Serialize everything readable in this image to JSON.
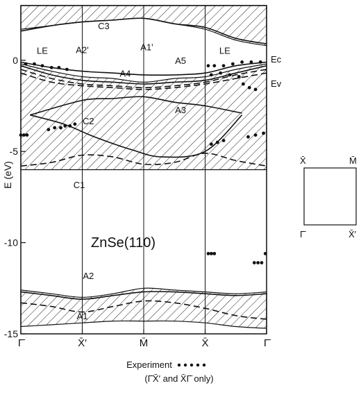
{
  "chart_data": {
    "type": "line",
    "title": "",
    "sample_label": "ZnSe(110)",
    "ylabel": "E (eV)",
    "ylim": [
      -15,
      3
    ],
    "y_ticks": [
      {
        "value": 0,
        "label": "0"
      },
      {
        "value": -5,
        "label": "-5"
      },
      {
        "value": -10,
        "label": "-10"
      },
      {
        "value": -15,
        "label": "-15"
      }
    ],
    "x_points": [
      {
        "pos": 0,
        "label": "Γ̄"
      },
      {
        "pos": 1,
        "label": "X̄′"
      },
      {
        "pos": 2,
        "label": "M̄"
      },
      {
        "pos": 3,
        "label": "X̄"
      },
      {
        "pos": 4,
        "label": "Γ̄"
      }
    ],
    "edge_labels": [
      {
        "text": "Ec",
        "y": 1.4
      },
      {
        "text": "Ev",
        "y": -0.1
      }
    ],
    "series": [
      {
        "name": "C3",
        "style": "solid",
        "x": [
          0,
          0.5,
          1,
          1.5,
          2,
          2.5,
          3,
          3.5,
          4
        ],
        "y": [
          1.6,
          1.9,
          2.1,
          2.2,
          2.3,
          2.0,
          1.8,
          1.2,
          0.9
        ]
      },
      {
        "name": "A5",
        "style": "solid",
        "x": [
          0,
          0.5,
          1,
          1.5,
          2,
          2.5,
          3,
          3.5,
          4
        ],
        "y": [
          -0.1,
          -0.4,
          -0.6,
          -0.7,
          -0.8,
          -0.8,
          -0.7,
          -0.3,
          -0.1
        ]
      },
      {
        "name": "A4",
        "style": "solid",
        "x": [
          0,
          0.5,
          1,
          1.5,
          2,
          2.5,
          3,
          3.5,
          4
        ],
        "y": [
          -0.3,
          -0.8,
          -1.1,
          -1.2,
          -1.3,
          -1.2,
          -1.1,
          -0.7,
          -0.3
        ]
      },
      {
        "name": "A2'",
        "style": "dashed",
        "x": [
          0,
          0.5,
          1,
          1.5,
          2,
          2.5,
          3,
          3.5,
          4
        ],
        "y": [
          -0.5,
          -1.0,
          -1.3,
          -1.4,
          -1.5,
          -1.4,
          -1.2,
          -0.8,
          -0.5
        ]
      },
      {
        "name": "A1'",
        "style": "dashed",
        "x": [
          0,
          0.5,
          1,
          1.5,
          2,
          2.5,
          3,
          3.5,
          4
        ],
        "y": [
          -0.7,
          -1.2,
          -1.4,
          -1.5,
          -1.6,
          -1.5,
          -1.3,
          -1.0,
          -0.7
        ]
      },
      {
        "name": "A3",
        "style": "solid",
        "x": [
          0.15,
          1,
          1.5,
          2,
          2.5,
          3,
          3.6
        ],
        "y": [
          -3.0,
          -2.2,
          -2.1,
          -2.0,
          -2.3,
          -2.5,
          -2.9
        ]
      },
      {
        "name": "C2",
        "style": "solid",
        "x": [
          0.15,
          0.7,
          1.2,
          1.8,
          2.3,
          3,
          3.6
        ],
        "y": [
          -3.0,
          -3.5,
          -4.2,
          -4.9,
          -5.3,
          -5.0,
          -3.0
        ]
      },
      {
        "name": "C1",
        "style": "dashed",
        "x": [
          0,
          0.5,
          1,
          1.5,
          2,
          2.5,
          3,
          3.5,
          4
        ],
        "y": [
          -5.8,
          -5.6,
          -5.2,
          -5.3,
          -5.7,
          -5.6,
          -5.1,
          -5.5,
          -5.8
        ]
      },
      {
        "name": "A2",
        "style": "solid",
        "x": [
          0,
          0.5,
          1,
          1.5,
          2,
          2.5,
          3,
          3.5,
          4
        ],
        "y": [
          -12.7,
          -12.9,
          -13.1,
          -12.9,
          -12.7,
          -12.7,
          -12.8,
          -12.9,
          -12.8
        ]
      },
      {
        "name": "A1",
        "style": "dashed",
        "x": [
          0,
          0.5,
          1,
          1.5,
          2,
          2.5,
          3,
          3.5,
          4
        ],
        "y": [
          -13.3,
          -13.5,
          -13.8,
          -13.5,
          -13.2,
          -13.3,
          -13.6,
          -14.0,
          -14.2
        ]
      }
    ],
    "bands": [
      {
        "upper": [
          -0.2,
          -0.6,
          -0.9,
          -1.0,
          -1.2,
          -1.0,
          -0.9,
          -0.5,
          -0.2
        ],
        "lower": [
          -6.0,
          -6.0,
          -6.0,
          -6.0,
          -6.0,
          -6.0,
          -6.0,
          -6.0,
          -6.0
        ],
        "x": [
          0,
          0.5,
          1,
          1.5,
          2,
          2.5,
          3,
          3.5,
          4
        ]
      },
      {
        "upper": [
          -12.6,
          -12.8,
          -13.0,
          -12.8,
          -12.5,
          -12.6,
          -12.7,
          -12.8,
          -12.7
        ],
        "lower": [
          -14.6,
          -14.5,
          -14.4,
          -14.3,
          -14.3,
          -14.3,
          -14.4,
          -14.6,
          -14.7
        ],
        "x": [
          0,
          0.5,
          1,
          1.5,
          2,
          2.5,
          3,
          3.5,
          4
        ]
      },
      {
        "upper": [
          3.0,
          3.0,
          3.0,
          3.0,
          3.0,
          3.0,
          3.0,
          3.0,
          3.0
        ],
        "lower": [
          1.7,
          1.9,
          2.1,
          2.2,
          2.3,
          2.0,
          1.7,
          1.1,
          0.8
        ],
        "x": [
          0,
          0.5,
          1,
          1.5,
          2,
          2.5,
          3,
          3.5,
          4
        ]
      }
    ],
    "experiment": [
      {
        "x": 0.08,
        "y": -0.2
      },
      {
        "x": 0.22,
        "y": -0.2
      },
      {
        "x": 0.35,
        "y": -0.3
      },
      {
        "x": 0.5,
        "y": -0.4
      },
      {
        "x": 0.62,
        "y": -0.4
      },
      {
        "x": 0.75,
        "y": -0.5
      },
      {
        "x": 0.0,
        "y": -4.1
      },
      {
        "x": 0.05,
        "y": -4.1
      },
      {
        "x": 0.1,
        "y": -4.1
      },
      {
        "x": 0.45,
        "y": -3.8
      },
      {
        "x": 0.55,
        "y": -3.7
      },
      {
        "x": 0.65,
        "y": -3.7
      },
      {
        "x": 0.72,
        "y": -3.6
      },
      {
        "x": 0.8,
        "y": -3.6
      },
      {
        "x": 0.88,
        "y": -3.5
      },
      {
        "x": 3.05,
        "y": -0.3
      },
      {
        "x": 3.15,
        "y": -0.3
      },
      {
        "x": 3.3,
        "y": -0.3
      },
      {
        "x": 3.45,
        "y": -0.2
      },
      {
        "x": 3.6,
        "y": -0.1
      },
      {
        "x": 3.75,
        "y": -0.1
      },
      {
        "x": 3.9,
        "y": -0.1
      },
      {
        "x": 3.1,
        "y": -0.8
      },
      {
        "x": 3.25,
        "y": -0.7
      },
      {
        "x": 3.4,
        "y": -0.8
      },
      {
        "x": 3.55,
        "y": -0.9
      },
      {
        "x": 3.62,
        "y": -1.3
      },
      {
        "x": 3.72,
        "y": -1.5
      },
      {
        "x": 3.82,
        "y": -1.6
      },
      {
        "x": 3.1,
        "y": -4.6
      },
      {
        "x": 3.2,
        "y": -4.5
      },
      {
        "x": 3.3,
        "y": -4.4
      },
      {
        "x": 3.7,
        "y": -4.2
      },
      {
        "x": 3.82,
        "y": -4.1
      },
      {
        "x": 3.95,
        "y": -4.0
      },
      {
        "x": 3.05,
        "y": -10.6
      },
      {
        "x": 3.1,
        "y": -10.6
      },
      {
        "x": 3.15,
        "y": -10.6
      },
      {
        "x": 3.8,
        "y": -11.1
      },
      {
        "x": 3.86,
        "y": -11.1
      },
      {
        "x": 3.92,
        "y": -11.1
      },
      {
        "x": 3.98,
        "y": -10.6
      }
    ],
    "annotations": [
      {
        "text": "C3",
        "x": 1.35,
        "y": 1.7
      },
      {
        "text": "LE",
        "x": 0.35,
        "y": 0.35
      },
      {
        "text": "A2'",
        "x": 1.0,
        "y": 0.4
      },
      {
        "text": "A1'",
        "x": 2.05,
        "y": 0.55
      },
      {
        "text": "LE",
        "x": 3.32,
        "y": 0.35
      },
      {
        "text": "A5",
        "x": 2.6,
        "y": -0.2
      },
      {
        "text": "A4",
        "x": 1.7,
        "y": -0.9
      },
      {
        "text": "A3",
        "x": 2.6,
        "y": -2.9
      },
      {
        "text": "C2",
        "x": 1.1,
        "y": -3.5
      },
      {
        "text": "C1",
        "x": 0.95,
        "y": -7.0
      },
      {
        "text": "A2",
        "x": 1.1,
        "y": -12.0
      },
      {
        "text": "A1",
        "x": 1.0,
        "y": -14.2
      }
    ],
    "legend": {
      "experiment_label": "Experiment",
      "experiment_note": "(Γ̄X̄′ and X̄Γ̄ only)"
    },
    "inset": {
      "corners": {
        "top_left": "X̄",
        "top_right": "M̄",
        "bottom_left": "Γ̄",
        "bottom_right": "X̄′"
      }
    }
  }
}
